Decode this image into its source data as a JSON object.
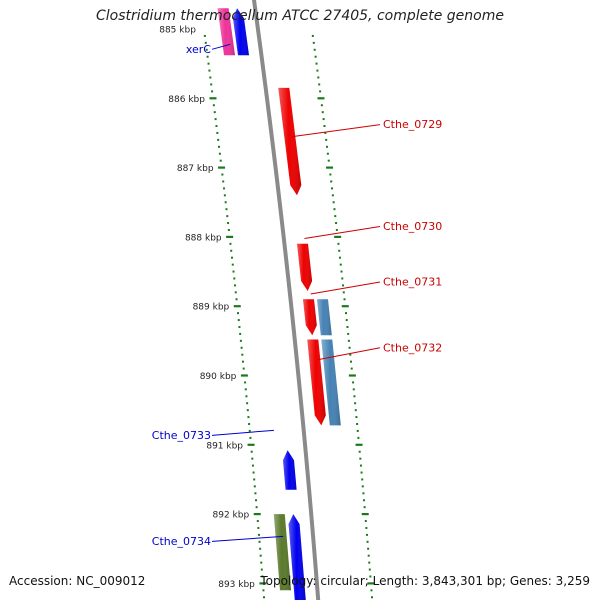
{
  "title": "Clostridium thermocellum ATCC 27405, complete genome",
  "accession": "Accession: NC_009012",
  "summary": "Topology: circular; Length: 3,843,301 bp; Genes: 3,259",
  "colors": {
    "backbone": "#8a8a8a",
    "ticks": "#1a7a1a",
    "forward_gene": "#0000ee",
    "reverse_gene": "#ee0000",
    "pink_gene": "#ee3399",
    "steelblue_gene": "#4682b4",
    "olive_gene": "#5a7a2a",
    "label_forward": "#0000cc",
    "label_reverse": "#cc0000"
  },
  "scale": [
    {
      "label": "885 kbp",
      "kbp": 885
    },
    {
      "label": "886 kbp",
      "kbp": 886
    },
    {
      "label": "887 kbp",
      "kbp": 887
    },
    {
      "label": "888 kbp",
      "kbp": 888
    },
    {
      "label": "889 kbp",
      "kbp": 889
    },
    {
      "label": "890 kbp",
      "kbp": 890
    },
    {
      "label": "891 kbp",
      "kbp": 891
    },
    {
      "label": "892 kbp",
      "kbp": 892
    },
    {
      "label": "893 kbp",
      "kbp": 893
    }
  ],
  "genes": [
    {
      "name": "pink-gene",
      "color": "pink_gene",
      "lane": -2,
      "start": 884.7,
      "end": 885.38,
      "dir": 0
    },
    {
      "name": "xerC",
      "color": "forward_gene",
      "lane": -1,
      "start": 884.7,
      "end": 885.38,
      "dir": -1
    },
    {
      "name": "Cthe_0729",
      "color": "reverse_gene",
      "lane": 1,
      "start": 885.85,
      "end": 887.4,
      "dir": 1
    },
    {
      "name": "Cthe_0730",
      "color": "reverse_gene",
      "lane": 1,
      "start": 888.1,
      "end": 888.78,
      "dir": 1
    },
    {
      "name": "Cthe_0731",
      "color": "reverse_gene",
      "lane": 1,
      "start": 888.9,
      "end": 889.42,
      "dir": 1
    },
    {
      "name": "Cthe_0731-blue",
      "color": "steelblue_gene",
      "lane": 2,
      "start": 888.9,
      "end": 889.42,
      "dir": 0
    },
    {
      "name": "Cthe_0732",
      "color": "reverse_gene",
      "lane": 1,
      "start": 889.48,
      "end": 890.72,
      "dir": 1
    },
    {
      "name": "Cthe_0732-blue",
      "color": "steelblue_gene",
      "lane": 2,
      "start": 889.48,
      "end": 890.72,
      "dir": 0
    },
    {
      "name": "Cthe_0733",
      "color": "forward_gene",
      "lane": -1,
      "start": 891.08,
      "end": 891.65,
      "dir": -1
    },
    {
      "name": "Cthe_0734-olive",
      "color": "olive_gene",
      "lane": -2,
      "start": 892.0,
      "end": 893.1,
      "dir": 0
    },
    {
      "name": "Cthe_0734",
      "color": "forward_gene",
      "lane": -1,
      "start": 892.0,
      "end": 893.3,
      "dir": -1
    }
  ],
  "labels": [
    {
      "text": "xerC",
      "side": "left",
      "color": "label_forward",
      "kbp": 885.25
    },
    {
      "text": "Cthe_0729",
      "side": "right",
      "color": "label_reverse",
      "kbp": 886.38
    },
    {
      "text": "Cthe_0730",
      "side": "right",
      "color": "label_reverse",
      "kbp": 887.85
    },
    {
      "text": "Cthe_0731",
      "side": "right",
      "color": "label_reverse",
      "kbp": 888.65
    },
    {
      "text": "Cthe_0732",
      "side": "right",
      "color": "label_reverse",
      "kbp": 889.6
    },
    {
      "text": "Cthe_0733",
      "side": "left",
      "color": "label_forward",
      "kbp": 890.82
    },
    {
      "text": "Cthe_0734",
      "side": "left",
      "color": "label_forward",
      "kbp": 892.35
    }
  ]
}
